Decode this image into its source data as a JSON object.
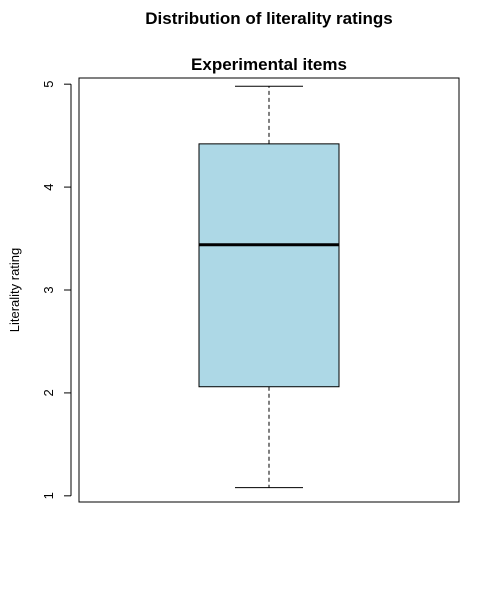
{
  "chart_data": {
    "type": "boxplot",
    "title": "Distribution of literality ratings",
    "subtitle": "Experimental items",
    "xlabel": "",
    "ylabel": "Literality rating",
    "y_ticks": [
      "1",
      "2",
      "3",
      "4",
      "5"
    ],
    "ylim": [
      0.94,
      5.06
    ],
    "grid": false,
    "box": {
      "min": 1.08,
      "q1": 2.06,
      "median": 3.44,
      "q3": 4.42,
      "max": 4.98
    },
    "colors": {
      "box_fill": "#add8e6",
      "stroke": "#000000"
    }
  }
}
